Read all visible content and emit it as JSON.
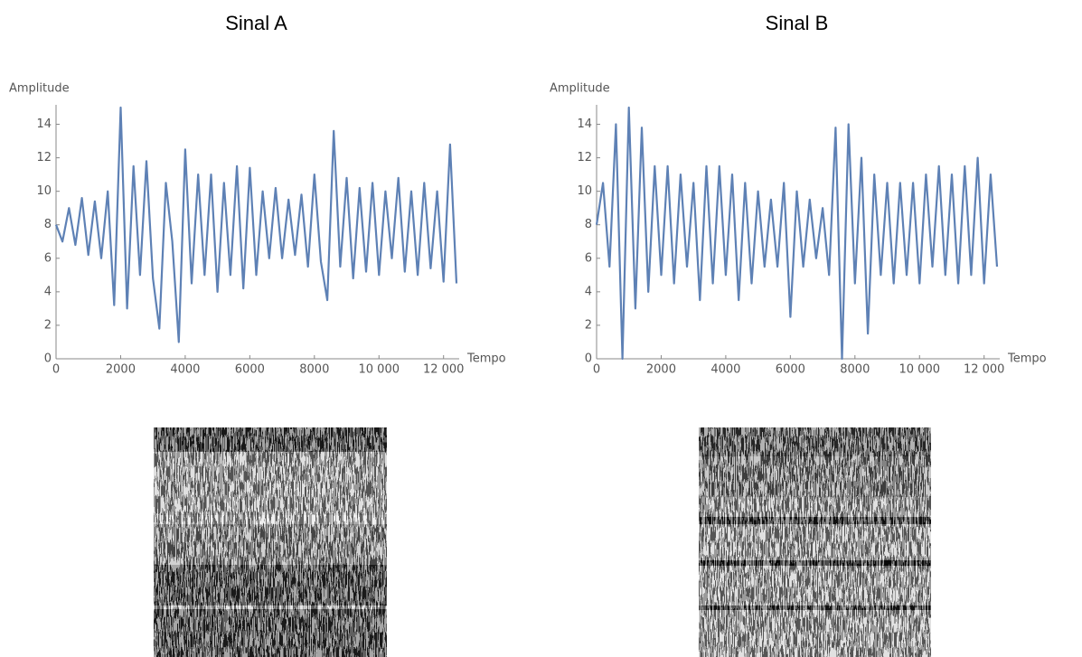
{
  "chart_data": [
    {
      "type": "line",
      "title": "Sinal A",
      "xlabel": "Tempo",
      "ylabel": "Amplitude",
      "color": "#5e81b5",
      "xlim": [
        0,
        12400
      ],
      "ylim": [
        0,
        15
      ],
      "xticks": [
        0,
        2000,
        4000,
        6000,
        8000,
        {
          "value": 10000,
          "label": "10 000"
        },
        {
          "value": 12000,
          "label": "12 000"
        }
      ],
      "yticks": [
        0,
        2,
        4,
        6,
        8,
        10,
        12,
        14
      ],
      "x": [
        0,
        200,
        400,
        600,
        800,
        1000,
        1200,
        1400,
        1600,
        1800,
        2000,
        2200,
        2400,
        2600,
        2800,
        3000,
        3200,
        3400,
        3600,
        3800,
        4000,
        4200,
        4400,
        4600,
        4800,
        5000,
        5200,
        5400,
        5600,
        5800,
        6000,
        6200,
        6400,
        6600,
        6800,
        7000,
        7200,
        7400,
        7600,
        7800,
        8000,
        8200,
        8400,
        8600,
        8800,
        9000,
        9200,
        9400,
        9600,
        9800,
        10000,
        10200,
        10400,
        10600,
        10800,
        11000,
        11200,
        11400,
        11600,
        11800,
        12000,
        12200,
        12400
      ],
      "series": [
        {
          "name": "Sinal A",
          "color": "#5e81b5",
          "values": [
            8,
            7,
            9,
            6.8,
            9.6,
            6.2,
            9.4,
            6,
            10,
            3.2,
            15,
            3,
            11.5,
            5,
            11.8,
            4.8,
            1.8,
            10.5,
            7,
            1,
            12.5,
            4.5,
            11,
            5,
            11,
            4,
            10.5,
            5,
            11.5,
            4.2,
            11.4,
            5,
            10,
            6,
            10.2,
            6,
            9.5,
            6.2,
            9.8,
            5.5,
            11,
            5.8,
            3.5,
            13.6,
            5.5,
            10.8,
            4.8,
            10.2,
            5.2,
            10.5,
            5,
            10,
            6,
            10.8,
            5.2,
            10,
            5,
            10.5,
            5.4,
            10,
            4.6,
            12.8,
            4.5
          ]
        }
      ]
    },
    {
      "type": "line",
      "title": "Sinal B",
      "xlabel": "Tempo",
      "ylabel": "Amplitude",
      "color": "#5e81b5",
      "xlim": [
        0,
        12400
      ],
      "ylim": [
        0,
        15
      ],
      "xticks": [
        0,
        2000,
        4000,
        6000,
        8000,
        {
          "value": 10000,
          "label": "10 000"
        },
        {
          "value": 12000,
          "label": "12 000"
        }
      ],
      "yticks": [
        0,
        2,
        4,
        6,
        8,
        10,
        12,
        14
      ],
      "x": [
        0,
        200,
        400,
        600,
        800,
        1000,
        1200,
        1400,
        1600,
        1800,
        2000,
        2200,
        2400,
        2600,
        2800,
        3000,
        3200,
        3400,
        3600,
        3800,
        4000,
        4200,
        4400,
        4600,
        4800,
        5000,
        5200,
        5400,
        5600,
        5800,
        6000,
        6200,
        6400,
        6600,
        6800,
        7000,
        7200,
        7400,
        7600,
        7800,
        8000,
        8200,
        8400,
        8600,
        8800,
        9000,
        9200,
        9400,
        9600,
        9800,
        10000,
        10200,
        10400,
        10600,
        10800,
        11000,
        11200,
        11400,
        11600,
        11800,
        12000,
        12200,
        12400
      ],
      "series": [
        {
          "name": "Sinal B",
          "color": "#5e81b5",
          "values": [
            8,
            10.5,
            5.5,
            14,
            0,
            15,
            3,
            13.8,
            4,
            11.5,
            5,
            11.5,
            4.5,
            11,
            5.5,
            10.5,
            3.5,
            11.5,
            4.5,
            11.5,
            5,
            11,
            3.5,
            10.5,
            4.5,
            10,
            5.5,
            9.5,
            5.5,
            10.5,
            2.5,
            10,
            5.5,
            9.5,
            6,
            9,
            5,
            13.8,
            0,
            14,
            4.5,
            12,
            1.5,
            11,
            5,
            10.5,
            4.5,
            10.5,
            5,
            10.5,
            4.5,
            11,
            5.5,
            11.5,
            5,
            11,
            4.5,
            11.5,
            5,
            12,
            4.5,
            11,
            5.5
          ]
        }
      ]
    }
  ]
}
